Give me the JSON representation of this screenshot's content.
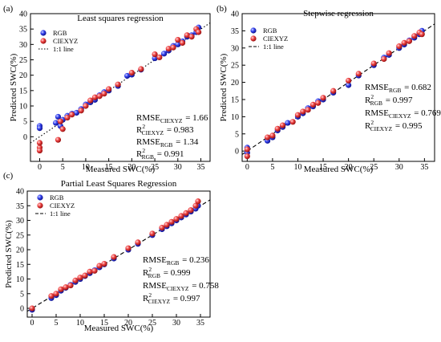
{
  "chart_data": [
    {
      "type": "scatter",
      "panel_label": "(a)",
      "title": "Least squares regression",
      "xlabel": "Measured SWC(%)",
      "ylabel": "Predicted SWC(%)",
      "xlim": [
        -2,
        37
      ],
      "ylim": [
        -8,
        40
      ],
      "xticks": [
        0,
        5,
        10,
        15,
        20,
        25,
        30,
        35
      ],
      "yticks": [
        0,
        5,
        10,
        15,
        20,
        25,
        30,
        35,
        40
      ],
      "legend": {
        "placement": "top-left",
        "entries": [
          {
            "label": "RGB",
            "kind": "marker",
            "color": "#1f2fd6"
          },
          {
            "label": "CIEXYZ",
            "kind": "marker",
            "color": "#e03a3a"
          },
          {
            "label": "1:1 line",
            "kind": "line",
            "style": "dotted",
            "color": "#000000"
          }
        ]
      },
      "line_11_style": "dotted",
      "series": [
        {
          "name": "RGB",
          "color": "#1f2fd6",
          "points": [
            [
              0,
              3.5
            ],
            [
              0,
              2.8
            ],
            [
              3.5,
              4.5
            ],
            [
              4.0,
              6.5
            ],
            [
              4.5,
              3.5
            ],
            [
              5.0,
              5.5
            ],
            [
              6,
              6.8
            ],
            [
              7,
              7.5
            ],
            [
              8,
              7.8
            ],
            [
              9,
              9.0
            ],
            [
              10,
              10.5
            ],
            [
              11,
              11.2
            ],
            [
              12,
              12.0
            ],
            [
              13,
              13.5
            ],
            [
              14,
              14.5
            ],
            [
              15,
              15.0
            ],
            [
              17,
              16.5
            ],
            [
              19,
              19.8
            ],
            [
              20,
              20.2
            ],
            [
              22,
              21.8
            ],
            [
              25,
              25.5
            ],
            [
              27,
              27.0
            ],
            [
              28,
              28.0
            ],
            [
              29,
              29.5
            ],
            [
              30,
              30.0
            ],
            [
              31,
              31.0
            ],
            [
              32,
              32.5
            ],
            [
              33,
              33.0
            ],
            [
              34,
              34.0
            ],
            [
              34.5,
              35.5
            ]
          ]
        },
        {
          "name": "CIEXYZ",
          "color": "#e03a3a",
          "points": [
            [
              0,
              -3.5
            ],
            [
              0,
              -4.5
            ],
            [
              0,
              -2.0
            ],
            [
              4.0,
              -1.0
            ],
            [
              4.5,
              5.0
            ],
            [
              5.0,
              2.5
            ],
            [
              6,
              6.2
            ],
            [
              7,
              7.2
            ],
            [
              9,
              8.5
            ],
            [
              10,
              10.0
            ],
            [
              11,
              11.8
            ],
            [
              12,
              12.8
            ],
            [
              13,
              13.2
            ],
            [
              14,
              14.0
            ],
            [
              15,
              15.5
            ],
            [
              17,
              17.0
            ],
            [
              20,
              20.8
            ],
            [
              22,
              22.0
            ],
            [
              25,
              26.8
            ],
            [
              26,
              25.8
            ],
            [
              28,
              28.6
            ],
            [
              29,
              29.0
            ],
            [
              30,
              31.5
            ],
            [
              31,
              30.5
            ],
            [
              32,
              33.0
            ],
            [
              33,
              32.5
            ],
            [
              34,
              35.0
            ],
            [
              34.5,
              34.0
            ]
          ]
        }
      ],
      "stats": [
        {
          "base": "RMSE",
          "sub": "CIEXYZ",
          "value": "= 1.66"
        },
        {
          "base": "R",
          "sup": "2",
          "sub": "CIEXYZ",
          "value": "= 0.983"
        },
        {
          "base": "RMSE",
          "sub": "RGB",
          "value": "= 1.34"
        },
        {
          "base": "R",
          "sup": "2",
          "sub": "RGB",
          "value": "= 0.991"
        }
      ]
    },
    {
      "type": "scatter",
      "panel_label": "(b)",
      "title": "Stepwise regression",
      "xlabel": "Measured SWC(%)",
      "ylabel": "Predicted SWC(%)",
      "xlim": [
        -1,
        37
      ],
      "ylim": [
        -3,
        40
      ],
      "xticks": [
        0,
        5,
        10,
        15,
        20,
        25,
        30,
        35
      ],
      "yticks": [
        0,
        5,
        10,
        15,
        20,
        25,
        30,
        35,
        40
      ],
      "legend": {
        "placement": "top-left",
        "entries": [
          {
            "label": "RGB",
            "kind": "marker",
            "color": "#1f2fd6"
          },
          {
            "label": "CIEXYZ",
            "kind": "marker",
            "color": "#e03a3a"
          },
          {
            "label": "1:1 line",
            "kind": "line",
            "style": "dashed",
            "color": "#000000"
          }
        ]
      },
      "line_11_style": "dashed",
      "series": [
        {
          "name": "RGB",
          "color": "#1f2fd6",
          "points": [
            [
              0,
              1.0
            ],
            [
              0,
              -0.5
            ],
            [
              4,
              3.0
            ],
            [
              5,
              4.0
            ],
            [
              6,
              6.0
            ],
            [
              7,
              7.0
            ],
            [
              8,
              8.2
            ],
            [
              10,
              10.0
            ],
            [
              11,
              11.0
            ],
            [
              12,
              12.5
            ],
            [
              13,
              13.0
            ],
            [
              14,
              14.5
            ],
            [
              15,
              15.0
            ],
            [
              17,
              17.0
            ],
            [
              20,
              19.2
            ],
            [
              22,
              22.0
            ],
            [
              25,
              25.0
            ],
            [
              27,
              27.2
            ],
            [
              28,
              28.0
            ],
            [
              30,
              30.0
            ],
            [
              31,
              31.0
            ],
            [
              32,
              32.2
            ],
            [
              33,
              33.0
            ],
            [
              34,
              34.0
            ],
            [
              34.5,
              35.0
            ]
          ]
        },
        {
          "name": "CIEXYZ",
          "color": "#e03a3a",
          "points": [
            [
              0,
              -1.5
            ],
            [
              0,
              0.5
            ],
            [
              4,
              4.0
            ],
            [
              5,
              4.5
            ],
            [
              6,
              6.5
            ],
            [
              7,
              7.5
            ],
            [
              9,
              8.5
            ],
            [
              10,
              10.5
            ],
            [
              11,
              11.5
            ],
            [
              12,
              12.0
            ],
            [
              13,
              13.5
            ],
            [
              14,
              14.0
            ],
            [
              15,
              15.5
            ],
            [
              17,
              17.5
            ],
            [
              20,
              20.5
            ],
            [
              22,
              22.5
            ],
            [
              25,
              25.5
            ],
            [
              27,
              26.8
            ],
            [
              28,
              28.5
            ],
            [
              30,
              30.5
            ],
            [
              31,
              31.5
            ],
            [
              32,
              32.0
            ],
            [
              33,
              33.5
            ],
            [
              34,
              34.5
            ],
            [
              34.5,
              34.0
            ]
          ]
        }
      ],
      "stats": [
        {
          "base": "RMSE",
          "sub": "RGB",
          "value": "= 0.682"
        },
        {
          "base": "R",
          "sup": "2",
          "sub": "RGB",
          "value": "= 0.997"
        },
        {
          "base": "RMSE",
          "sub": "CIEXYZ",
          "value": "= 0.769"
        },
        {
          "base": "R",
          "sup": "2",
          "sub": "CIEXYZ",
          "value": "= 0.995"
        }
      ]
    },
    {
      "type": "scatter",
      "panel_label": "(c)",
      "title": "Partial Least Squares Regression",
      "xlabel": "Measured SWC(%)",
      "ylabel": "Predicted SWC(%)",
      "xlim": [
        -1,
        37
      ],
      "ylim": [
        -3,
        40
      ],
      "xticks": [
        0,
        5,
        10,
        15,
        20,
        25,
        30,
        35
      ],
      "yticks": [
        0,
        5,
        10,
        15,
        20,
        25,
        30,
        35,
        40
      ],
      "legend": {
        "placement": "top-left",
        "entries": [
          {
            "label": "RGB",
            "kind": "marker",
            "color": "#1f2fd6"
          },
          {
            "label": "CIEXYZ",
            "kind": "marker",
            "color": "#e03a3a"
          },
          {
            "label": "1:1 line",
            "kind": "line",
            "style": "dashed",
            "color": "#000000"
          }
        ]
      },
      "line_11_style": "dashed",
      "series": [
        {
          "name": "RGB",
          "color": "#1f2fd6",
          "points": [
            [
              0,
              -0.5
            ],
            [
              4,
              3.5
            ],
            [
              5,
              4.5
            ],
            [
              6,
              6.0
            ],
            [
              7,
              7.0
            ],
            [
              8,
              8.0
            ],
            [
              9,
              9.0
            ],
            [
              10,
              10.0
            ],
            [
              11,
              11.0
            ],
            [
              12,
              12.0
            ],
            [
              13,
              13.0
            ],
            [
              14,
              14.0
            ],
            [
              15,
              15.0
            ],
            [
              17,
              17.0
            ],
            [
              20,
              20.0
            ],
            [
              22,
              22.0
            ],
            [
              25,
              25.0
            ],
            [
              27,
              27.0
            ],
            [
              28,
              28.0
            ],
            [
              29,
              29.0
            ],
            [
              30,
              30.0
            ],
            [
              31,
              31.0
            ],
            [
              32,
              32.0
            ],
            [
              33,
              33.0
            ],
            [
              34,
              34.0
            ],
            [
              34.5,
              35.0
            ]
          ]
        },
        {
          "name": "CIEXYZ",
          "color": "#e03a3a",
          "points": [
            [
              0,
              0.0
            ],
            [
              4,
              4.2
            ],
            [
              5,
              5.0
            ],
            [
              6,
              6.5
            ],
            [
              7,
              7.2
            ],
            [
              8,
              7.8
            ],
            [
              9,
              9.5
            ],
            [
              10,
              10.5
            ],
            [
              11,
              11.2
            ],
            [
              12,
              12.5
            ],
            [
              13,
              12.8
            ],
            [
              14,
              14.5
            ],
            [
              15,
              15.2
            ],
            [
              17,
              17.5
            ],
            [
              20,
              20.5
            ],
            [
              22,
              22.5
            ],
            [
              25,
              25.5
            ],
            [
              27,
              27.5
            ],
            [
              28,
              28.5
            ],
            [
              29,
              29.5
            ],
            [
              30,
              30.5
            ],
            [
              31,
              31.5
            ],
            [
              32,
              32.5
            ],
            [
              33,
              33.5
            ],
            [
              34,
              35.0
            ],
            [
              34.5,
              36.5
            ]
          ]
        }
      ],
      "stats": [
        {
          "base": "RMSE",
          "sub": "RGB",
          "value": "= 0.236"
        },
        {
          "base": "R",
          "sup": "2",
          "sub": "RGB",
          "value": "= 0.999"
        },
        {
          "base": "RMSE",
          "sub": "CIEXYZ",
          "value": "= 0.758"
        },
        {
          "base": "R",
          "sup": "2",
          "sub": "CIEXYZ",
          "value": "= 0.997"
        }
      ]
    }
  ]
}
